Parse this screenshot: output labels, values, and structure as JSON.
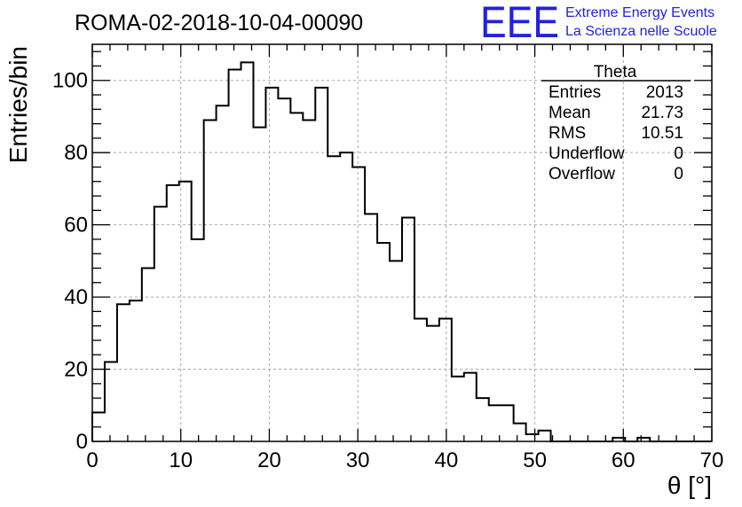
{
  "title": "ROMA-02-2018-10-04-00090",
  "logo": {
    "mark": "EEE",
    "line1": "Extreme Energy Events",
    "line2": "La Scienza nelle Scuole",
    "color": "#2222dd"
  },
  "stats": {
    "name": "Theta",
    "rows": [
      {
        "label": "Entries",
        "value": "2013"
      },
      {
        "label": "Mean",
        "value": "21.73"
      },
      {
        "label": "RMS",
        "value": "10.51"
      },
      {
        "label": "Underflow",
        "value": "0"
      },
      {
        "label": "Overflow",
        "value": "0"
      }
    ]
  },
  "chart_data": {
    "type": "bar",
    "style": "step-histogram",
    "xlabel": "θ [°]",
    "ylabel": "Entries/bin",
    "xlim": [
      0,
      70
    ],
    "ylim": [
      0,
      110
    ],
    "x_ticks": [
      0,
      10,
      20,
      30,
      40,
      50,
      60,
      70
    ],
    "y_ticks": [
      0,
      20,
      40,
      60,
      80,
      100
    ],
    "grid": true,
    "bin_width": 1.4,
    "bin_edges_start": 0,
    "values": [
      8,
      22,
      38,
      39,
      48,
      65,
      71,
      72,
      56,
      89,
      93,
      103,
      105,
      87,
      98,
      95,
      91,
      89,
      98,
      79,
      80,
      76,
      63,
      55,
      50,
      62,
      34,
      32,
      34,
      18,
      19,
      12,
      10,
      10,
      5,
      2,
      3,
      0,
      0,
      0,
      0,
      0,
      1,
      0,
      1,
      0,
      0,
      0,
      0,
      0
    ]
  }
}
